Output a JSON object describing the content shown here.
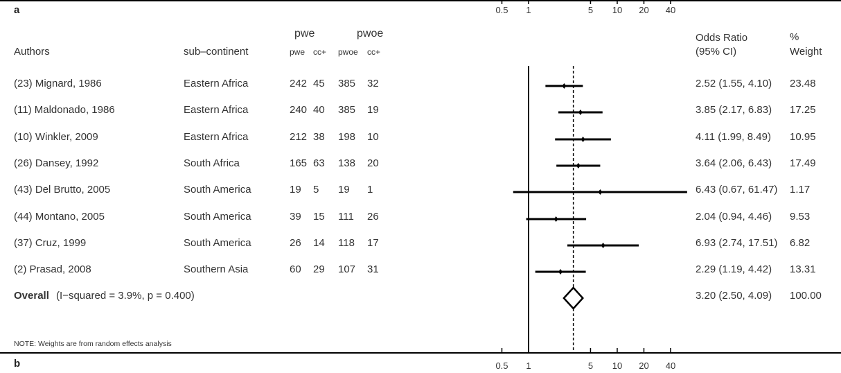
{
  "panel_top_label": "a",
  "panel_bottom_label": "b",
  "headers": {
    "authors": "Authors",
    "subcontinent": "sub–continent",
    "group1": "pwe",
    "group2": "pwoe",
    "g1_col1": "pwe",
    "g1_col2": "cc+",
    "g2_col1": "pwoe",
    "g2_col2": "cc+",
    "or_line1": "Odds Ratio",
    "or_line2": "(95% CI)",
    "weight_line1": "%",
    "weight_line2": "Weight"
  },
  "axis_ticks_top": [
    "0.5",
    "1",
    "5",
    "10",
    "20",
    "40"
  ],
  "axis_ticks_bottom": [
    "0.5",
    "1",
    "5",
    "10",
    "20",
    "40"
  ],
  "overall": {
    "label": "Overall",
    "stats": "(I−squared = 3.9%, p = 0.400)",
    "ci_text": "3.20 (2.50, 4.09)",
    "weight": "100.00"
  },
  "note": "NOTE: Weights are from random effects analysis",
  "studies": [
    {
      "author": "(23) Mignard, 1986",
      "region": "Eastern Africa",
      "pwe": "242",
      "pwe_cc": "45",
      "pwoe": "385",
      "pwoe_cc": "32",
      "ci_text": "2.52 (1.55, 4.10)",
      "weight": "23.48"
    },
    {
      "author": "(11) Maldonado, 1986",
      "region": "Eastern Africa",
      "pwe": "240",
      "pwe_cc": "40",
      "pwoe": "385",
      "pwoe_cc": "19",
      "ci_text": "3.85 (2.17, 6.83)",
      "weight": "17.25"
    },
    {
      "author": "(10) Winkler, 2009",
      "region": "Eastern Africa",
      "pwe": "212",
      "pwe_cc": "38",
      "pwoe": "198",
      "pwoe_cc": "10",
      "ci_text": "4.11 (1.99, 8.49)",
      "weight": "10.95"
    },
    {
      "author": "(26) Dansey, 1992",
      "region": "South Africa",
      "pwe": "165",
      "pwe_cc": "63",
      "pwoe": "138",
      "pwoe_cc": "20",
      "ci_text": "3.64 (2.06, 6.43)",
      "weight": "17.49"
    },
    {
      "author": "(43) Del Brutto, 2005",
      "region": "South America",
      "pwe": "19",
      "pwe_cc": "5",
      "pwoe": "19",
      "pwoe_cc": "1",
      "ci_text": "6.43 (0.67, 61.47)",
      "weight": "1.17"
    },
    {
      "author": "(44) Montano, 2005",
      "region": "South America",
      "pwe": "39",
      "pwe_cc": "15",
      "pwoe": "111",
      "pwoe_cc": "26",
      "ci_text": "2.04 (0.94, 4.46)",
      "weight": "9.53"
    },
    {
      "author": "(37) Cruz, 1999",
      "region": "South America",
      "pwe": "26",
      "pwe_cc": "14",
      "pwoe": "118",
      "pwoe_cc": "17",
      "ci_text": "6.93 (2.74, 17.51)",
      "weight": "6.82"
    },
    {
      "author": "(2) Prasad, 2008",
      "region": "Southern Asia",
      "pwe": "60",
      "pwe_cc": "29",
      "pwoe": "107",
      "pwoe_cc": "31",
      "ci_text": "2.29 (1.19, 4.42)",
      "weight": "13.31"
    }
  ],
  "chart_data": {
    "type": "forest",
    "x_scale": "log",
    "x_ticks": [
      0.5,
      1,
      5,
      10,
      20,
      40
    ],
    "reference_line": 1,
    "pooled_line": 3.2,
    "series": [
      {
        "study": "(23) Mignard, 1986",
        "or": 2.52,
        "lo": 1.55,
        "hi": 4.1,
        "weight": 23.48
      },
      {
        "study": "(11) Maldonado, 1986",
        "or": 3.85,
        "lo": 2.17,
        "hi": 6.83,
        "weight": 17.25
      },
      {
        "study": "(10) Winkler, 2009",
        "or": 4.11,
        "lo": 1.99,
        "hi": 8.49,
        "weight": 10.95
      },
      {
        "study": "(26) Dansey, 1992",
        "or": 3.64,
        "lo": 2.06,
        "hi": 6.43,
        "weight": 17.49
      },
      {
        "study": "(43) Del Brutto, 2005",
        "or": 6.43,
        "lo": 0.67,
        "hi": 61.47,
        "weight": 1.17
      },
      {
        "study": "(44) Montano, 2005",
        "or": 2.04,
        "lo": 0.94,
        "hi": 4.46,
        "weight": 9.53
      },
      {
        "study": "(37) Cruz, 1999",
        "or": 6.93,
        "lo": 2.74,
        "hi": 17.51,
        "weight": 6.82
      },
      {
        "study": "(2) Prasad, 2008",
        "or": 2.29,
        "lo": 1.19,
        "hi": 4.42,
        "weight": 13.31
      }
    ],
    "overall": {
      "or": 3.2,
      "lo": 2.5,
      "hi": 4.09,
      "weight": 100.0
    }
  }
}
